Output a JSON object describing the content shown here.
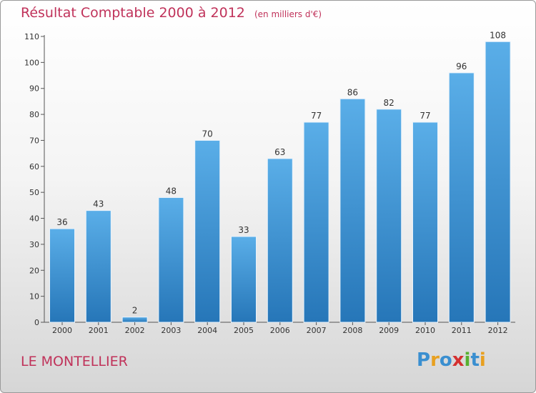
{
  "title": "Résultat Comptable 2000 à 2012",
  "subtitle": "(en milliers d'€)",
  "town": "LE MONTELLIER",
  "logo": {
    "text": "Proxiti",
    "letters": [
      {
        "ch": "P",
        "color": "#3a8fd0"
      },
      {
        "ch": "r",
        "color": "#e8a020"
      },
      {
        "ch": "o",
        "color": "#3a8fd0"
      },
      {
        "ch": "x",
        "color": "#d43030"
      },
      {
        "ch": "i",
        "color": "#58b030"
      },
      {
        "ch": "t",
        "color": "#3a8fd0"
      },
      {
        "ch": "i",
        "color": "#e8a020"
      }
    ]
  },
  "colors": {
    "accent": "#c0325a",
    "bar_light": "#5aaee8",
    "bar_dark": "#2676b8",
    "axis": "#555555"
  },
  "chart_data": {
    "type": "bar",
    "categories": [
      "2000",
      "2001",
      "2002",
      "2003",
      "2004",
      "2005",
      "2006",
      "2007",
      "2008",
      "2009",
      "2010",
      "2011",
      "2012"
    ],
    "values": [
      36,
      43,
      2,
      48,
      70,
      33,
      63,
      77,
      86,
      82,
      77,
      96,
      108
    ],
    "ylim": [
      0,
      110
    ],
    "yticks": [
      0,
      10,
      20,
      30,
      40,
      50,
      60,
      70,
      80,
      90,
      100,
      110
    ],
    "grid": false,
    "data_labels": true
  }
}
